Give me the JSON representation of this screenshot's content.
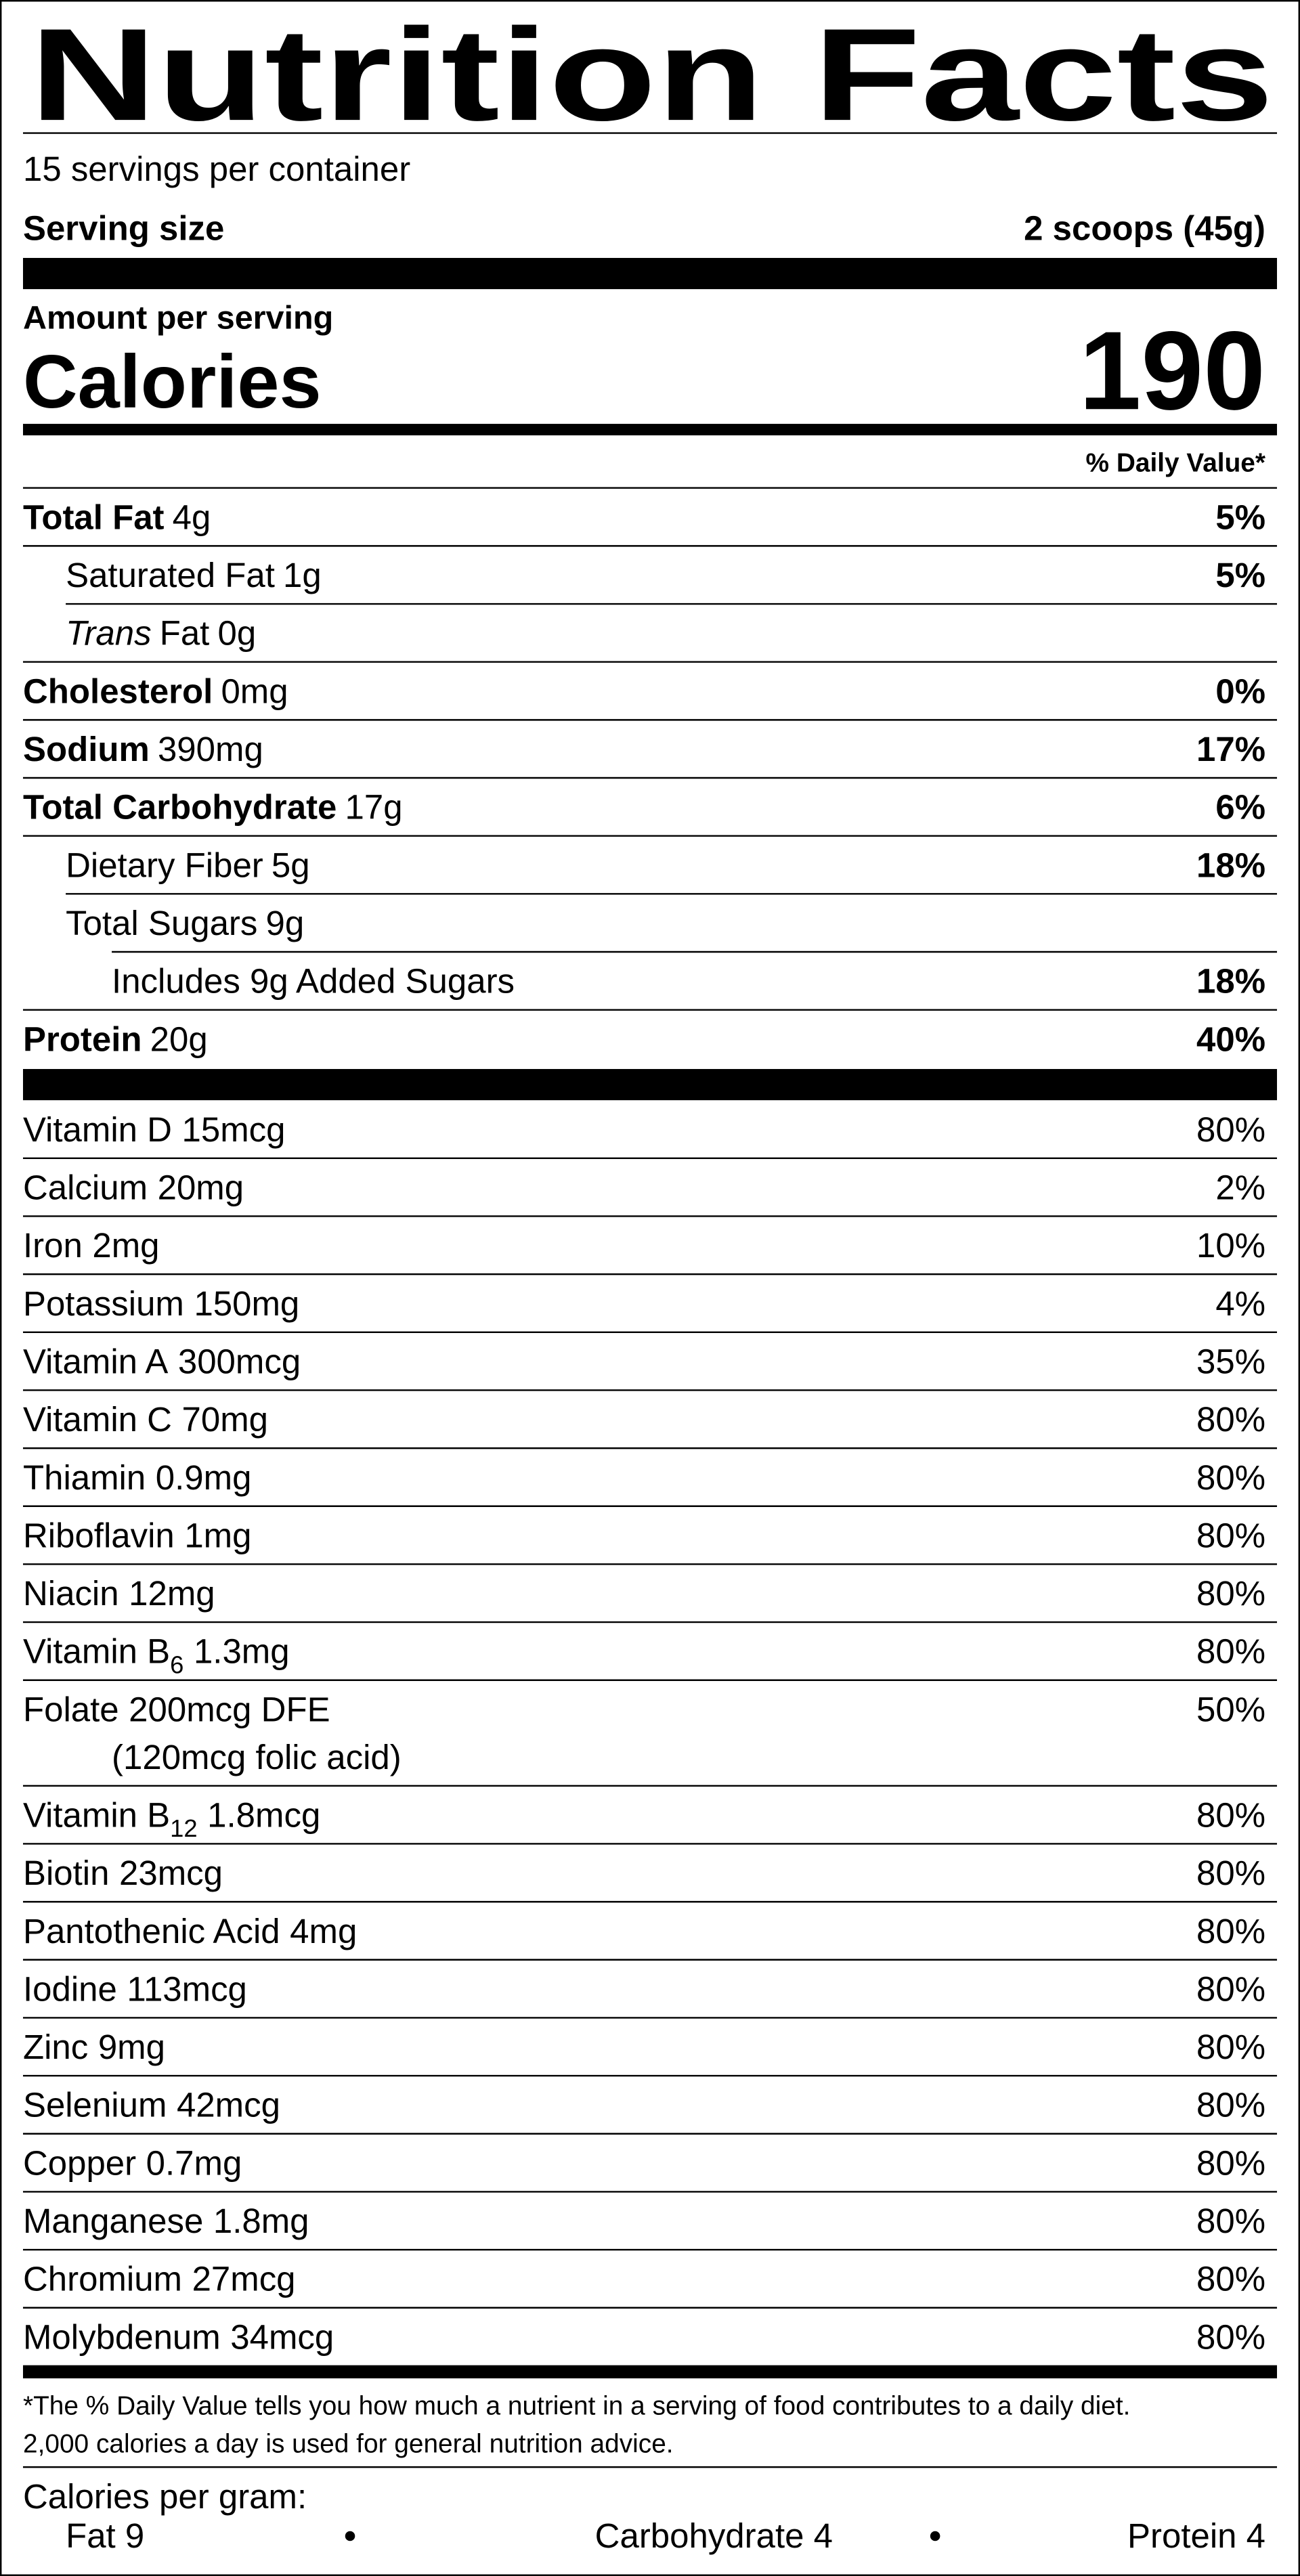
{
  "title": "Nutrition Facts",
  "servings": "15 servings per container",
  "serving_size": {
    "label": "Serving size",
    "value": "2 scoops (45g)"
  },
  "amount_per_serving": "Amount per serving",
  "calories": {
    "label": "Calories",
    "value": 190
  },
  "daily_value_header": "% Daily Value*",
  "nutrients": [
    {
      "name": "Total Fat",
      "amount": "4g",
      "dv": "5%",
      "children": [
        {
          "name": "Saturated Fat",
          "amount": "1g",
          "dv": "5%"
        },
        {
          "italic": "Trans",
          "name": "Fat",
          "amount": "0g"
        }
      ]
    },
    {
      "name": "Cholesterol",
      "amount": "0mg",
      "dv": "0%"
    },
    {
      "name": "Sodium",
      "amount": "390mg",
      "dv": "17%"
    },
    {
      "name": "Total Carbohydrate",
      "amount": "17g",
      "dv": "6%",
      "children": [
        {
          "name": "Dietary Fiber",
          "amount": "5g",
          "dv": "18%"
        },
        {
          "name": "Total Sugars",
          "amount": "9g",
          "children": [
            {
              "name": "Includes 9g Added Sugars",
              "dv": "18%"
            }
          ]
        }
      ]
    },
    {
      "name": "Protein",
      "amount": "20g",
      "dv": "40%"
    }
  ],
  "vitamins": [
    {
      "name": "Vitamin D",
      "amount": "15mcg",
      "dv": "80%"
    },
    {
      "name": "Calcium",
      "amount": "20mg",
      "dv": "2%"
    },
    {
      "name": "Iron",
      "amount": "2mg",
      "dv": "10%"
    },
    {
      "name": "Potassium",
      "amount": "150mg",
      "dv": "4%"
    },
    {
      "name": "Vitamin A",
      "amount": "300mcg",
      "dv": "35%"
    },
    {
      "name": "Vitamin C",
      "amount": "70mg",
      "dv": "80%"
    },
    {
      "name": "Thiamin",
      "amount": "0.9mg",
      "dv": "80%"
    },
    {
      "name": "Riboflavin",
      "amount": "1mg",
      "dv": "80%"
    },
    {
      "name": "Niacin",
      "amount": "12mg",
      "dv": "80%"
    },
    {
      "name": "Vitamin B",
      "sub": "6",
      "amount": "1.3mg",
      "dv": "80%"
    },
    {
      "name": "Folate",
      "amount": "200mcg DFE",
      "note": "(120mcg folic acid)",
      "dv": "50%"
    },
    {
      "name": "Vitamin B",
      "sub": "12",
      "amount": "1.8mcg",
      "dv": "80%"
    },
    {
      "name": "Biotin",
      "amount": "23mcg",
      "dv": "80%"
    },
    {
      "name": "Pantothenic Acid",
      "amount": "4mg",
      "dv": "80%"
    },
    {
      "name": "Iodine",
      "amount": "113mcg",
      "dv": "80%"
    },
    {
      "name": "Zinc",
      "amount": "9mg",
      "dv": "80%"
    },
    {
      "name": "Selenium",
      "amount": "42mcg",
      "dv": "80%"
    },
    {
      "name": "Copper",
      "amount": "0.7mg",
      "dv": "80%"
    },
    {
      "name": "Manganese",
      "amount": "1.8mg",
      "dv": "80%"
    },
    {
      "name": "Chromium",
      "amount": "27mcg",
      "dv": "80%"
    },
    {
      "name": "Molybdenum",
      "amount": "34mcg",
      "dv": "80%"
    }
  ],
  "footnote": [
    "*The % Daily Value tells you how much a nutrient in a serving of food contributes to a daily diet.",
    "2,000 calories a day is used for general nutrition advice."
  ],
  "calories_per_gram": {
    "label": "Calories per gram:",
    "items": [
      "Fat 9",
      "Carbohydrate 4",
      "Protein 4"
    ]
  }
}
